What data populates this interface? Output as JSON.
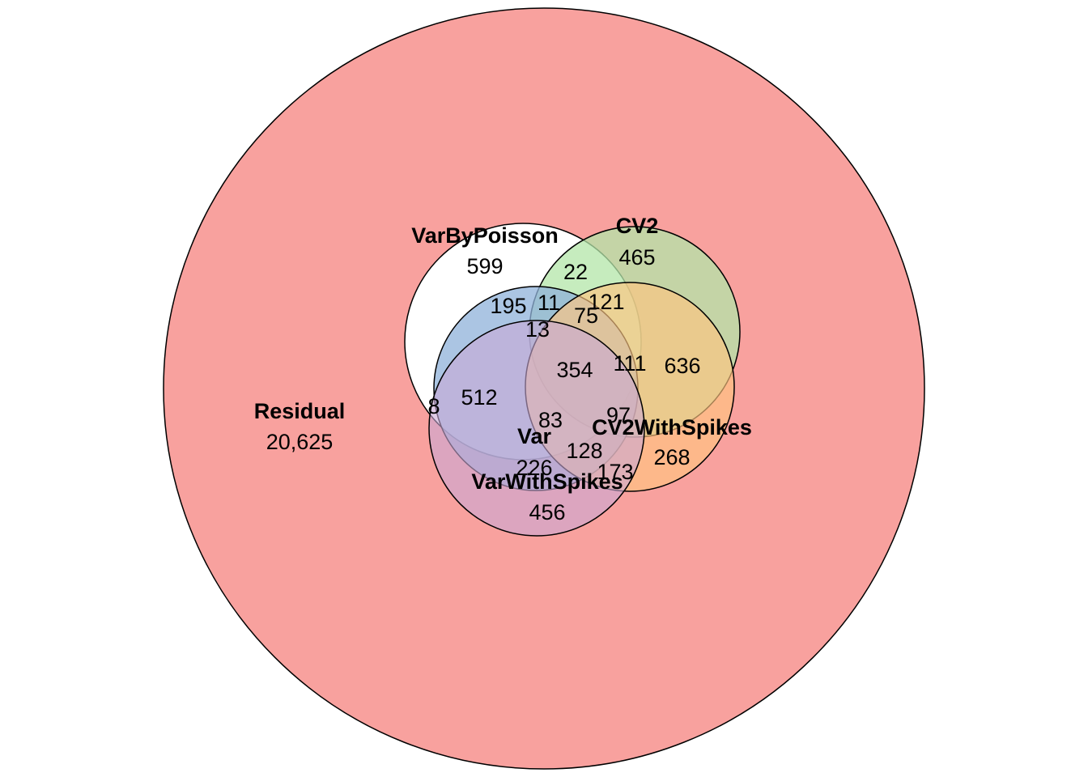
{
  "diagram": {
    "sets": [
      {
        "id": "residual",
        "name": "Residual",
        "count": "20,625",
        "color": "#F8A19E"
      },
      {
        "id": "varbypoisson",
        "name": "VarByPoisson",
        "count": "599",
        "color": "#FFFFFF"
      },
      {
        "id": "cv2",
        "name": "CV2",
        "count": "465",
        "color": "#C3E7BC"
      },
      {
        "id": "var",
        "name": "Var",
        "count": "226",
        "color": "#A7BFD9"
      },
      {
        "id": "cv2withspikes",
        "name": "CV2WithSpikes",
        "count": "268",
        "color": "#FED19B"
      },
      {
        "id": "varwithspikes",
        "name": "VarWithSpikes",
        "count": "456",
        "color": "#D6BEDD"
      }
    ],
    "intersections": [
      "22",
      "195",
      "11",
      "121",
      "13",
      "75",
      "354",
      "111",
      "636",
      "8",
      "512",
      "83",
      "97",
      "128",
      "173"
    ]
  }
}
